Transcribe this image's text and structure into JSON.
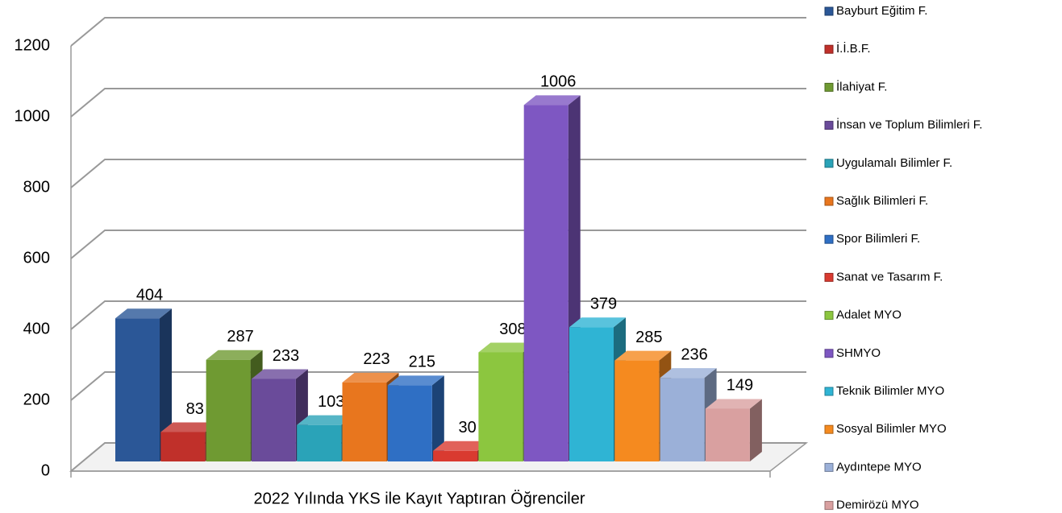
{
  "chart_data": {
    "type": "bar3d",
    "categories": [
      "2022 Yılında YKS ile Kayıt Yaptıran Öğrenciler"
    ],
    "series": [
      {
        "name": "Bayburt Eğitim F.",
        "color": "#2b5797",
        "values": [
          404
        ]
      },
      {
        "name": "İ.İ.B.F.",
        "color": "#c0302a",
        "values": [
          83
        ]
      },
      {
        "name": "İlahiyat F.",
        "color": "#6f9a32",
        "values": [
          287
        ]
      },
      {
        "name": "İnsan ve Toplum Bilimleri F.",
        "color": "#6a4b9a",
        "values": [
          233
        ]
      },
      {
        "name": "Uygulamalı Bilimler F.",
        "color": "#2aa3b8",
        "values": [
          103
        ]
      },
      {
        "name": "Sağlık Bilimleri F.",
        "color": "#e8761e",
        "values": [
          223
        ]
      },
      {
        "name": "Spor Bilimleri F.",
        "color": "#2f6fc4",
        "values": [
          215
        ]
      },
      {
        "name": "Sanat ve Tasarım F.",
        "color": "#d93a30",
        "values": [
          30
        ]
      },
      {
        "name": "Adalet MYO",
        "color": "#8cc63f",
        "values": [
          308
        ]
      },
      {
        "name": "SHMYO",
        "color": "#7e57c2",
        "values": [
          1006
        ]
      },
      {
        "name": "Teknik Bilimler MYO",
        "color": "#2fb4d4",
        "values": [
          379
        ]
      },
      {
        "name": "Sosyal Bilimler MYO",
        "color": "#f58a1f",
        "values": [
          285
        ]
      },
      {
        "name": "Aydıntepe MYO",
        "color": "#9bb0d8",
        "values": [
          236
        ]
      },
      {
        "name": "Demirözü MYO",
        "color": "#d9a0a0",
        "values": [
          149
        ]
      }
    ],
    "ylim": [
      0,
      1200
    ],
    "yticks": [
      0,
      200,
      400,
      600,
      800,
      1000,
      1200
    ],
    "grid": true,
    "legend": "right"
  }
}
